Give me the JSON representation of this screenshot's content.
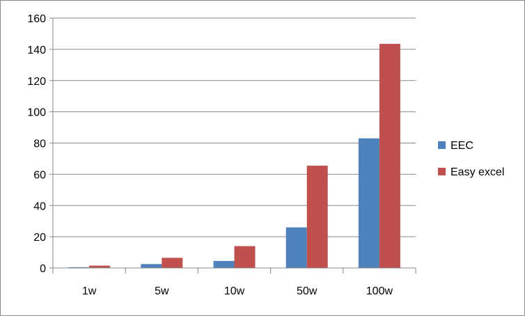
{
  "chart_data": {
    "type": "bar",
    "title": "",
    "xlabel": "",
    "ylabel": "",
    "categories": [
      "1w",
      "5w",
      "10w",
      "50w",
      "100w"
    ],
    "series": [
      {
        "name": "EEC",
        "color": "#4F81BD",
        "values": [
          0.5,
          2.5,
          4.5,
          26,
          83
        ]
      },
      {
        "name": "Easy excel",
        "color": "#C0504D",
        "values": [
          1.5,
          6.5,
          14,
          65.5,
          143.5
        ]
      }
    ],
    "ylim": [
      0,
      160
    ],
    "yticks": [
      0,
      20,
      40,
      60,
      80,
      100,
      120,
      140,
      160
    ],
    "grid": true,
    "legend_position": "right"
  }
}
